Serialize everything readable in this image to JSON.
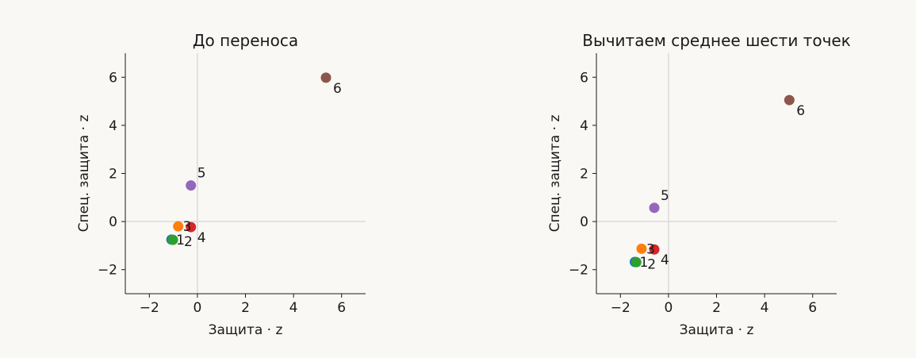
{
  "figure": {
    "background": "#f9f8f5",
    "axis_color": "#1a1a1a",
    "zero_line_color": "#dcdcdc"
  },
  "chart_data": [
    {
      "type": "scatter",
      "title": "До переноса",
      "xlabel": "Защита · z",
      "ylabel": "Спец. защита · z",
      "xlim": [
        -3,
        7
      ],
      "ylim": [
        -3,
        7
      ],
      "xticks": [
        -2,
        0,
        2,
        4,
        6
      ],
      "yticks": [
        -2,
        0,
        2,
        4,
        6
      ],
      "tick_labels_x": [
        "−2",
        "0",
        "2",
        "4",
        "6"
      ],
      "tick_labels_y": [
        "−2",
        "0",
        "2",
        "4",
        "6"
      ],
      "grid": false,
      "zero_lines": true,
      "points": [
        {
          "label": "1",
          "x": -1.08,
          "y": -0.75,
          "color": "#1f77b4"
        },
        {
          "label": "2",
          "x": -1.02,
          "y": -0.76,
          "color": "#2ca02c"
        },
        {
          "label": "3",
          "x": -0.8,
          "y": -0.2,
          "color": "#ff7f0e"
        },
        {
          "label": "4",
          "x": -0.27,
          "y": -0.23,
          "color": "#d62728"
        },
        {
          "label": "5",
          "x": -0.27,
          "y": 1.5,
          "color": "#9467bd"
        },
        {
          "label": "6",
          "x": 5.35,
          "y": 5.98,
          "color": "#8c564b"
        }
      ]
    },
    {
      "type": "scatter",
      "title": "Вычитаем среднее шести точек",
      "xlabel": "Защита · z",
      "ylabel": "Спец. защита · z",
      "xlim": [
        -3,
        7
      ],
      "ylim": [
        -3,
        7
      ],
      "xticks": [
        -2,
        0,
        2,
        4,
        6
      ],
      "yticks": [
        -2,
        0,
        2,
        4,
        6
      ],
      "tick_labels_x": [
        "−2",
        "0",
        "2",
        "4",
        "6"
      ],
      "tick_labels_y": [
        "−2",
        "0",
        "2",
        "4",
        "6"
      ],
      "grid": false,
      "zero_lines": true,
      "points": [
        {
          "label": "1",
          "x": -1.4,
          "y": -1.68,
          "color": "#1f77b4"
        },
        {
          "label": "2",
          "x": -1.34,
          "y": -1.69,
          "color": "#2ca02c"
        },
        {
          "label": "3",
          "x": -1.12,
          "y": -1.13,
          "color": "#ff7f0e"
        },
        {
          "label": "4",
          "x": -0.59,
          "y": -1.16,
          "color": "#d62728"
        },
        {
          "label": "5",
          "x": -0.59,
          "y": 0.57,
          "color": "#9467bd"
        },
        {
          "label": "6",
          "x": 5.03,
          "y": 5.05,
          "color": "#8c564b"
        }
      ]
    }
  ]
}
